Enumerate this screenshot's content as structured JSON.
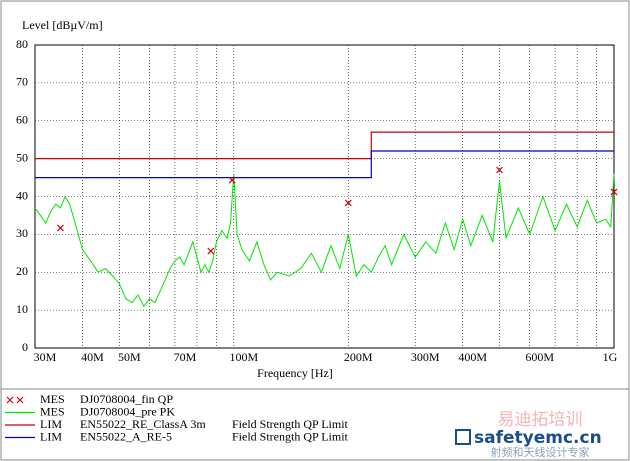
{
  "chart_data": {
    "type": "line",
    "y_label": "Level [dBµV/m]",
    "x_label": "Frequency [Hz]",
    "x_log": true,
    "xlim": [
      30000000,
      1000000000
    ],
    "ylim": [
      0,
      80
    ],
    "yticks": [
      0,
      10,
      20,
      30,
      40,
      50,
      60,
      70,
      80
    ],
    "xticks": [
      {
        "value": 30000000,
        "label": "30M"
      },
      {
        "value": 40000000,
        "label": "40M"
      },
      {
        "value": 50000000,
        "label": "50M"
      },
      {
        "value": 70000000,
        "label": "70M"
      },
      {
        "value": 100000000,
        "label": "100M"
      },
      {
        "value": 200000000,
        "label": "200M"
      },
      {
        "value": 300000000,
        "label": "300M"
      },
      {
        "value": 400000000,
        "label": "400M"
      },
      {
        "value": 600000000,
        "label": "600M"
      },
      {
        "value": 1000000000,
        "label": "1G"
      }
    ],
    "x_minor_grid": [
      60000000,
      80000000,
      90000000,
      500000000,
      700000000,
      800000000,
      900000000
    ],
    "grid": true,
    "series": [
      {
        "kind": "MES",
        "name": "DJ0708004_fin QP",
        "color": "#dd0000",
        "style": "cross",
        "x": [
          35000000,
          87000000,
          99000000,
          200000000,
          500000000,
          1000000000
        ],
        "values": [
          31.7,
          25.6,
          44.3,
          38.3,
          47,
          41.2
        ]
      },
      {
        "kind": "MES",
        "name": "DJ0708004_pre PK",
        "color": "#00e600",
        "style": "line",
        "x": [
          30000000,
          31000000,
          32000000,
          33000000,
          34000000,
          35000000,
          36000000,
          37000000,
          38000000,
          39000000,
          40000000,
          42000000,
          44000000,
          46000000,
          48000000,
          50000000,
          52000000,
          54000000,
          56000000,
          58000000,
          60000000,
          62000000,
          64000000,
          66000000,
          68000000,
          70000000,
          72000000,
          74000000,
          76000000,
          78000000,
          80000000,
          82000000,
          84000000,
          86000000,
          88000000,
          90000000,
          93000000,
          96000000,
          98000000,
          100000000,
          102000000,
          105000000,
          110000000,
          115000000,
          120000000,
          125000000,
          130000000,
          140000000,
          150000000,
          160000000,
          170000000,
          180000000,
          190000000,
          200000000,
          210000000,
          220000000,
          230000000,
          240000000,
          250000000,
          260000000,
          280000000,
          300000000,
          320000000,
          340000000,
          360000000,
          380000000,
          400000000,
          420000000,
          450000000,
          480000000,
          500000000,
          520000000,
          560000000,
          600000000,
          650000000,
          700000000,
          750000000,
          800000000,
          850000000,
          900000000,
          950000000,
          980000000,
          1000000000
        ],
        "values": [
          37,
          35,
          33,
          36,
          38,
          37,
          40,
          38,
          34,
          30,
          26,
          23,
          20,
          21,
          19,
          17,
          13,
          12,
          14,
          11,
          13,
          12,
          15,
          18,
          21,
          23,
          24,
          22,
          25,
          28,
          24,
          20,
          22,
          20,
          23,
          28,
          31,
          29,
          33,
          46,
          30,
          26,
          23,
          28,
          22,
          18,
          20,
          19,
          21,
          25,
          20,
          27,
          21,
          30,
          19,
          22,
          20,
          24,
          27,
          22,
          30,
          24,
          28,
          25,
          33,
          26,
          34,
          27,
          35,
          28,
          44,
          29,
          37,
          30,
          40,
          31,
          38,
          32,
          39,
          33,
          34,
          32,
          46
        ]
      },
      {
        "kind": "LIM",
        "name": "EN55022_RE_ClassA 3m",
        "description": "Field Strength QP Limit",
        "color": "#cc0000",
        "style": "line",
        "x": [
          30000000,
          230000000,
          230000000,
          1000000000
        ],
        "values": [
          50,
          50,
          57,
          57
        ]
      },
      {
        "kind": "LIM",
        "name": "EN55022_A_RE-5",
        "description": "Field Strength QP Limit",
        "color": "#0000cc",
        "style": "line",
        "x": [
          30000000,
          230000000,
          230000000,
          1000000000
        ],
        "values": [
          45,
          45,
          52,
          52
        ]
      }
    ]
  },
  "watermark": {
    "top": "易迪拓培训",
    "brand": "safetyemc.cn",
    "bottom": "射频和天线设计专家"
  }
}
